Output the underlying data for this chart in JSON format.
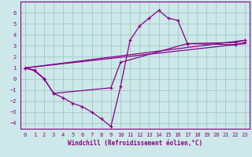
{
  "xlabel": "Windchill (Refroidissement éolien,°C)",
  "bg_color": "#cce8e8",
  "grid_color": "#aacccc",
  "line_color": "#880088",
  "xlim": [
    -0.5,
    23.5
  ],
  "ylim": [
    -4.5,
    7.0
  ],
  "yticks": [
    -4,
    -3,
    -2,
    -1,
    0,
    1,
    2,
    3,
    4,
    5,
    6
  ],
  "xticks": [
    0,
    1,
    2,
    3,
    4,
    5,
    6,
    7,
    8,
    9,
    10,
    11,
    12,
    13,
    14,
    15,
    16,
    17,
    18,
    19,
    20,
    21,
    22,
    23
  ],
  "curve1_x": [
    0,
    1,
    2,
    3,
    4,
    5,
    6,
    7,
    8,
    9,
    10,
    11,
    12,
    13,
    14,
    15,
    16,
    17,
    22,
    23
  ],
  "curve1_y": [
    1.0,
    0.8,
    0.05,
    -1.3,
    -1.7,
    -2.2,
    -2.5,
    -3.0,
    -3.6,
    -4.3,
    -0.7,
    3.5,
    4.8,
    5.5,
    6.2,
    5.5,
    5.3,
    3.2,
    3.3,
    3.5
  ],
  "curve2_x": [
    0,
    1,
    2,
    3,
    9,
    10,
    17,
    22,
    23
  ],
  "curve2_y": [
    1.0,
    0.75,
    0.0,
    -1.3,
    -0.8,
    1.5,
    3.2,
    3.1,
    3.3
  ],
  "line1_x": [
    0,
    23
  ],
  "line1_y": [
    1.0,
    3.5
  ],
  "line2_x": [
    0,
    23
  ],
  "line2_y": [
    1.0,
    3.2
  ]
}
